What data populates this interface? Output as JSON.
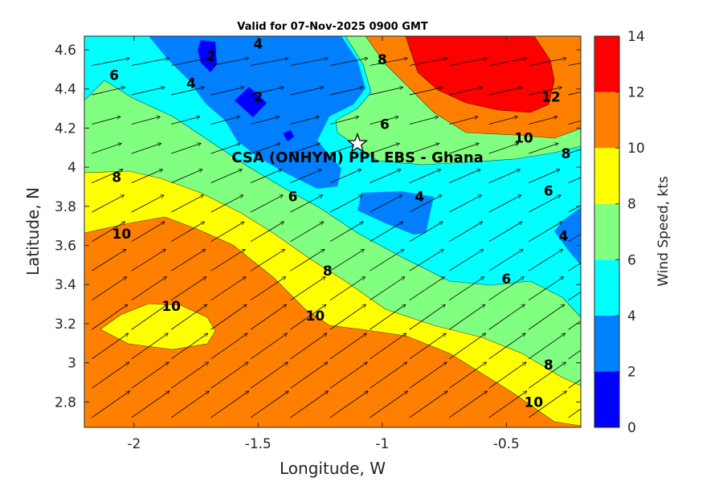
{
  "chart_data": {
    "type": "contour",
    "title": "Valid for 07-Nov-2025 0900 GMT",
    "xlabel": "Longitude, W",
    "ylabel": "Latitude, N",
    "colorbar_label": "Wind Speed, kts",
    "xlim": [
      -2.2,
      -0.2
    ],
    "ylim": [
      2.67,
      4.67
    ],
    "x_ticks": [
      -2,
      -1.5,
      -1,
      -0.5
    ],
    "y_ticks": [
      2.8,
      3,
      3.2,
      3.4,
      3.6,
      3.8,
      4,
      4.2,
      4.4,
      4.6
    ],
    "x_tick_labels": [
      "-2",
      "-1.5",
      "-1",
      "-0.5"
    ],
    "y_tick_labels": [
      "2.8",
      "3",
      "3.2",
      "3.4",
      "3.6",
      "3.8",
      "4",
      "4.2",
      "4.4",
      "4.6"
    ],
    "colorbar": {
      "range": [
        0,
        14
      ],
      "ticks": [
        "0",
        "2",
        "4",
        "6",
        "8",
        "10",
        "12",
        "14"
      ],
      "levels": [
        {
          "from": 0,
          "to": 2,
          "color": "#0000ff"
        },
        {
          "from": 2,
          "to": 4,
          "color": "#0080ff"
        },
        {
          "from": 4,
          "to": 6,
          "color": "#00ffff"
        },
        {
          "from": 6,
          "to": 8,
          "color": "#80ff80"
        },
        {
          "from": 8,
          "to": 10,
          "color": "#ffff00"
        },
        {
          "from": 10,
          "to": 12,
          "color": "#ff8000"
        },
        {
          "from": 12,
          "to": 14,
          "color": "#ff0000"
        }
      ]
    },
    "site": {
      "label": "CSA (ONHYM) PPL EBS  - Ghana",
      "lon": -1.1,
      "lat": 4.12,
      "marker": "star"
    },
    "contour_labels": [
      {
        "text": "6",
        "lon": -2.08,
        "lat": 4.47
      },
      {
        "text": "4",
        "lon": -1.77,
        "lat": 4.43
      },
      {
        "text": "2",
        "lon": -1.69,
        "lat": 4.57
      },
      {
        "text": "4",
        "lon": -1.5,
        "lat": 4.63
      },
      {
        "text": "2",
        "lon": -1.5,
        "lat": 4.36
      },
      {
        "text": "8",
        "lon": -1.0,
        "lat": 4.55
      },
      {
        "text": "6",
        "lon": -0.99,
        "lat": 4.22
      },
      {
        "text": "12",
        "lon": -0.32,
        "lat": 4.36
      },
      {
        "text": "10",
        "lon": -0.43,
        "lat": 4.15
      },
      {
        "text": "8",
        "lon": -0.26,
        "lat": 4.07
      },
      {
        "text": "8",
        "lon": -2.07,
        "lat": 3.95
      },
      {
        "text": "6",
        "lon": -1.36,
        "lat": 3.85
      },
      {
        "text": "4",
        "lon": -0.85,
        "lat": 3.85
      },
      {
        "text": "6",
        "lon": -0.33,
        "lat": 3.88
      },
      {
        "text": "4",
        "lon": -0.27,
        "lat": 3.65
      },
      {
        "text": "10",
        "lon": -2.05,
        "lat": 3.66
      },
      {
        "text": "8",
        "lon": -1.22,
        "lat": 3.47
      },
      {
        "text": "6",
        "lon": -0.5,
        "lat": 3.43
      },
      {
        "text": "10",
        "lon": -1.85,
        "lat": 3.29
      },
      {
        "text": "10",
        "lon": -1.27,
        "lat": 3.24
      },
      {
        "text": "8",
        "lon": -0.33,
        "lat": 2.99
      },
      {
        "text": "10",
        "lon": -0.39,
        "lat": 2.8
      }
    ],
    "wind_field": {
      "description": "wind vectors from SW/WSW, increasing southward",
      "rows": [
        {
          "lat": 2.7,
          "dir_deg": 55,
          "speed_kts": 11
        },
        {
          "lat": 3.2,
          "dir_deg": 55,
          "speed_kts": 10
        },
        {
          "lat": 3.7,
          "dir_deg": 60,
          "speed_kts": 8
        },
        {
          "lat": 4.2,
          "dir_deg": 75,
          "speed_kts": 5
        },
        {
          "lat": 4.6,
          "dir_deg": 80,
          "speed_kts": 9
        }
      ]
    }
  }
}
